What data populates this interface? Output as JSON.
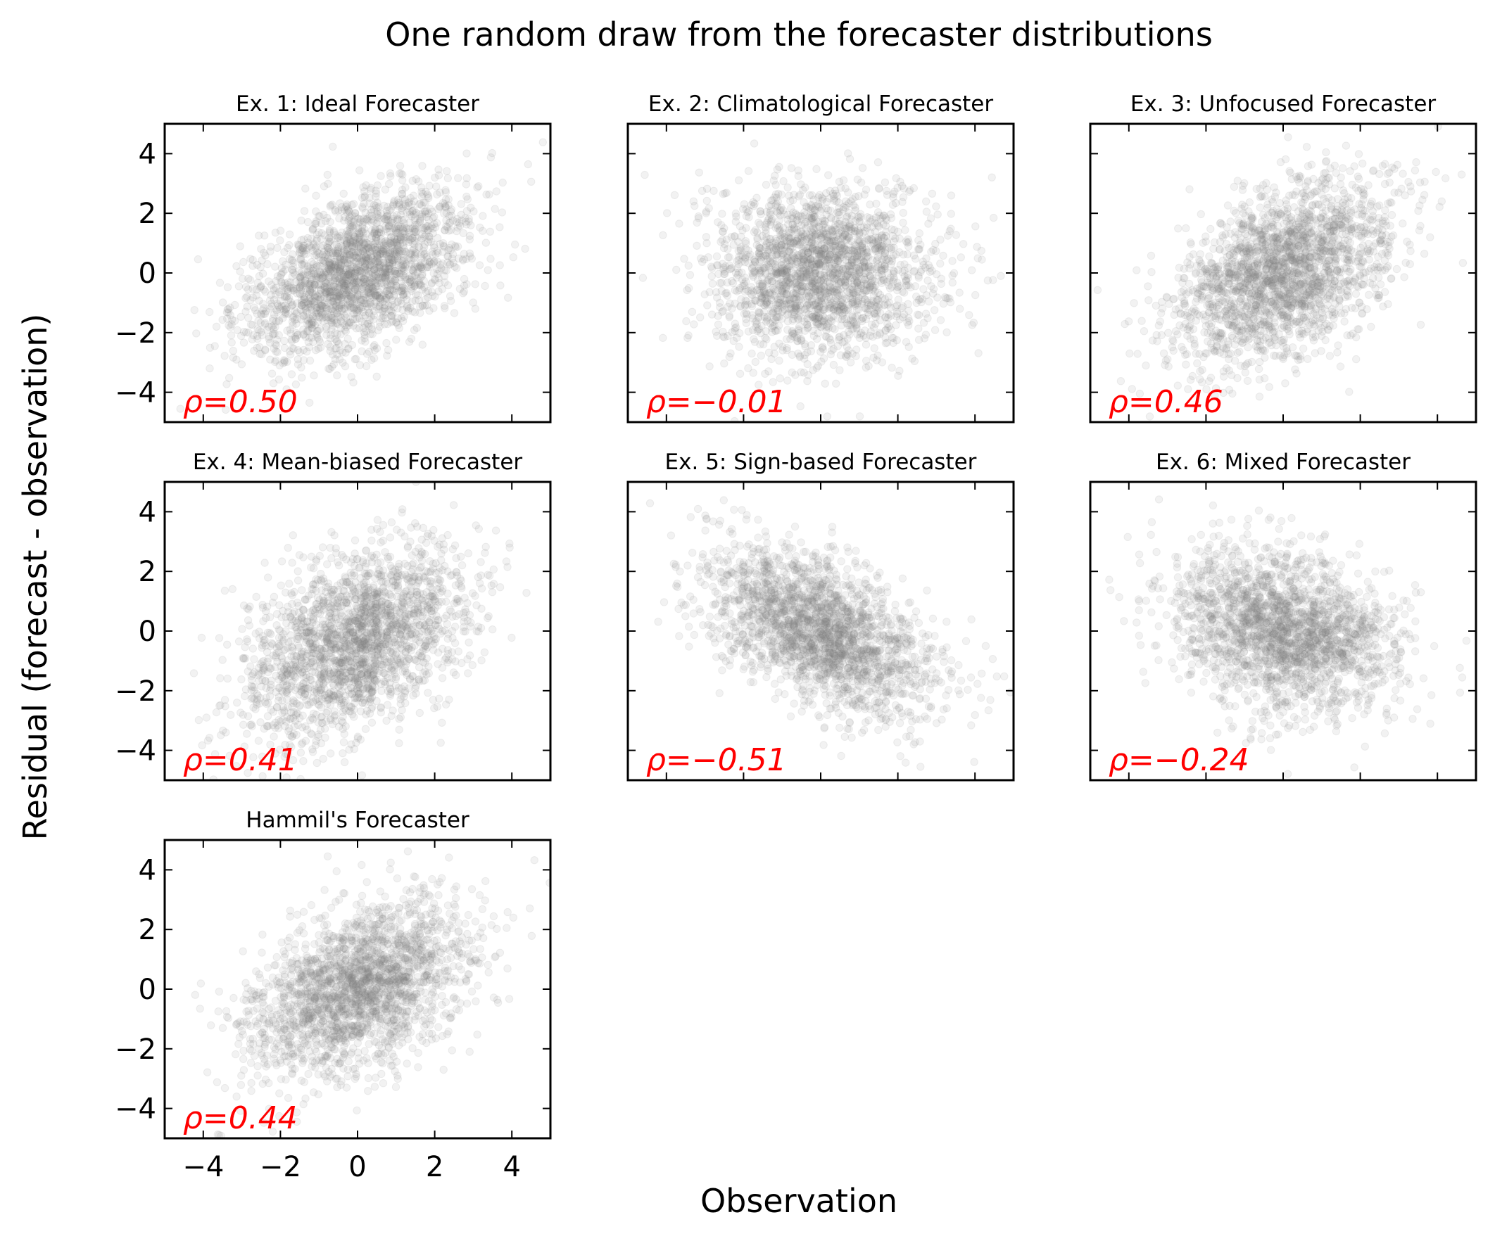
{
  "chart_data": {
    "type": "scatter",
    "title": "One random draw from the forecaster distributions",
    "xlabel": "Observation",
    "ylabel": "Residual (forecast - observation)",
    "xlim": [
      -5,
      5
    ],
    "ylim": [
      -5,
      5
    ],
    "xticks": [
      -4,
      -2,
      0,
      2,
      4
    ],
    "yticks": [
      -4,
      -2,
      0,
      2,
      4
    ],
    "tick_labels": [
      "−4",
      "−2",
      "0",
      "2",
      "4"
    ],
    "point_color": "#808080",
    "annotation_color": "#ff0000",
    "panels": [
      {
        "title": "Ex. 1: Ideal Forecaster",
        "rho": 0.5,
        "rho_label": "ρ=0.50",
        "x_std": 1.41,
        "y_std": 1.41,
        "mean_shift": 0
      },
      {
        "title": "Ex. 2: Climatological Forecaster",
        "rho": -0.01,
        "rho_label": "ρ=−0.01",
        "x_std": 1.41,
        "y_std": 1.41,
        "mean_shift": 0
      },
      {
        "title": "Ex. 3: Unfocused Forecaster",
        "rho": 0.46,
        "rho_label": "ρ=0.46",
        "x_std": 1.41,
        "y_std": 1.55,
        "mean_shift": 0
      },
      {
        "title": "Ex. 4: Mean-biased Forecaster",
        "rho": 0.41,
        "rho_label": "ρ=0.41",
        "x_std": 1.41,
        "y_std": 1.55,
        "mean_shift": -0.3
      },
      {
        "title": "Ex. 5: Sign-based Forecaster",
        "rho": -0.51,
        "rho_label": "ρ=−0.51",
        "x_std": 1.41,
        "y_std": 1.41,
        "mean_shift": 0
      },
      {
        "title": "Ex. 6: Mixed Forecaster",
        "rho": -0.24,
        "rho_label": "ρ=−0.24",
        "x_std": 1.41,
        "y_std": 1.35,
        "mean_shift": 0
      },
      {
        "title": "Hammil's Forecaster",
        "rho": 0.44,
        "rho_label": "ρ=0.44",
        "x_std": 1.41,
        "y_std": 1.45,
        "mean_shift": 0
      }
    ]
  }
}
